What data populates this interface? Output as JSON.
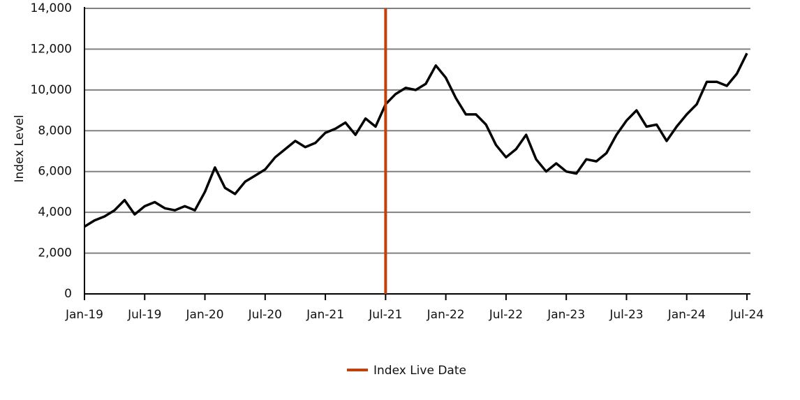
{
  "chart_data": {
    "type": "line",
    "y_label": "Index Level",
    "x": [
      "2019-01",
      "2019-02",
      "2019-03",
      "2019-04",
      "2019-05",
      "2019-06",
      "2019-07",
      "2019-08",
      "2019-09",
      "2019-10",
      "2019-11",
      "2019-12",
      "2020-01",
      "2020-02",
      "2020-03",
      "2020-04",
      "2020-05",
      "2020-06",
      "2020-07",
      "2020-08",
      "2020-09",
      "2020-10",
      "2020-11",
      "2020-12",
      "2021-01",
      "2021-02",
      "2021-03",
      "2021-04",
      "2021-05",
      "2021-06",
      "2021-07",
      "2021-08",
      "2021-09",
      "2021-10",
      "2021-11",
      "2021-12",
      "2022-01",
      "2022-02",
      "2022-03",
      "2022-04",
      "2022-05",
      "2022-06",
      "2022-07",
      "2022-08",
      "2022-09",
      "2022-10",
      "2022-11",
      "2022-12",
      "2023-01",
      "2023-02",
      "2023-03",
      "2023-04",
      "2023-05",
      "2023-06",
      "2023-07",
      "2023-08",
      "2023-09",
      "2023-10",
      "2023-11",
      "2023-12",
      "2024-01",
      "2024-02",
      "2024-03",
      "2024-04",
      "2024-05",
      "2024-06",
      "2024-07"
    ],
    "series": [
      {
        "color": "#000000",
        "values": [
          3300,
          3600,
          3800,
          4100,
          4600,
          3900,
          4300,
          4500,
          4200,
          4100,
          4300,
          4100,
          5000,
          6200,
          5200,
          4900,
          5500,
          5800,
          6100,
          6700,
          7100,
          7500,
          7200,
          7400,
          7900,
          8100,
          8400,
          7800,
          8600,
          8200,
          9300,
          9800,
          10100,
          10000,
          10300,
          11200,
          10600,
          9600,
          8800,
          8800,
          8300,
          7300,
          6700,
          7100,
          7800,
          6600,
          6000,
          6400,
          6000,
          5900,
          6600,
          6500,
          6900,
          7800,
          8500,
          9000,
          8200,
          8300,
          7500,
          8200,
          8800,
          9300,
          10400,
          10400,
          10200,
          10800,
          11800
        ]
      },
      {
        "name": "Index Live Date",
        "color": "#c0410c",
        "x": [
          "2021-07",
          "2021-07"
        ],
        "values": [
          0,
          14000
        ]
      }
    ],
    "xlim": [
      "2019-01",
      "2024-07"
    ],
    "xticks": [
      {
        "value": "2019-01",
        "label": "Jan-19"
      },
      {
        "value": "2019-07",
        "label": "Jul-19"
      },
      {
        "value": "2020-01",
        "label": "Jan-20"
      },
      {
        "value": "2020-07",
        "label": "Jul-20"
      },
      {
        "value": "2021-01",
        "label": "Jan-21"
      },
      {
        "value": "2021-07",
        "label": "Jul-21"
      },
      {
        "value": "2022-01",
        "label": "Jan-22"
      },
      {
        "value": "2022-07",
        "label": "Jul-22"
      },
      {
        "value": "2023-01",
        "label": "Jan-23"
      },
      {
        "value": "2023-07",
        "label": "Jul-23"
      },
      {
        "value": "2024-01",
        "label": "Jan-24"
      },
      {
        "value": "2024-07",
        "label": "Jul-24"
      }
    ],
    "ylim": [
      0,
      14000
    ],
    "yticks": [
      0,
      {
        "value": 2000,
        "label": "2,000"
      },
      {
        "value": 4000,
        "label": "4,000"
      },
      {
        "value": 6000,
        "label": "6,000"
      },
      {
        "value": 8000,
        "label": "8,000"
      },
      {
        "value": 10000,
        "label": "10,000"
      },
      {
        "value": 12000,
        "label": "12,000"
      },
      {
        "value": 14000,
        "label": "14,000"
      }
    ],
    "grid": true,
    "legend": "bottom"
  }
}
